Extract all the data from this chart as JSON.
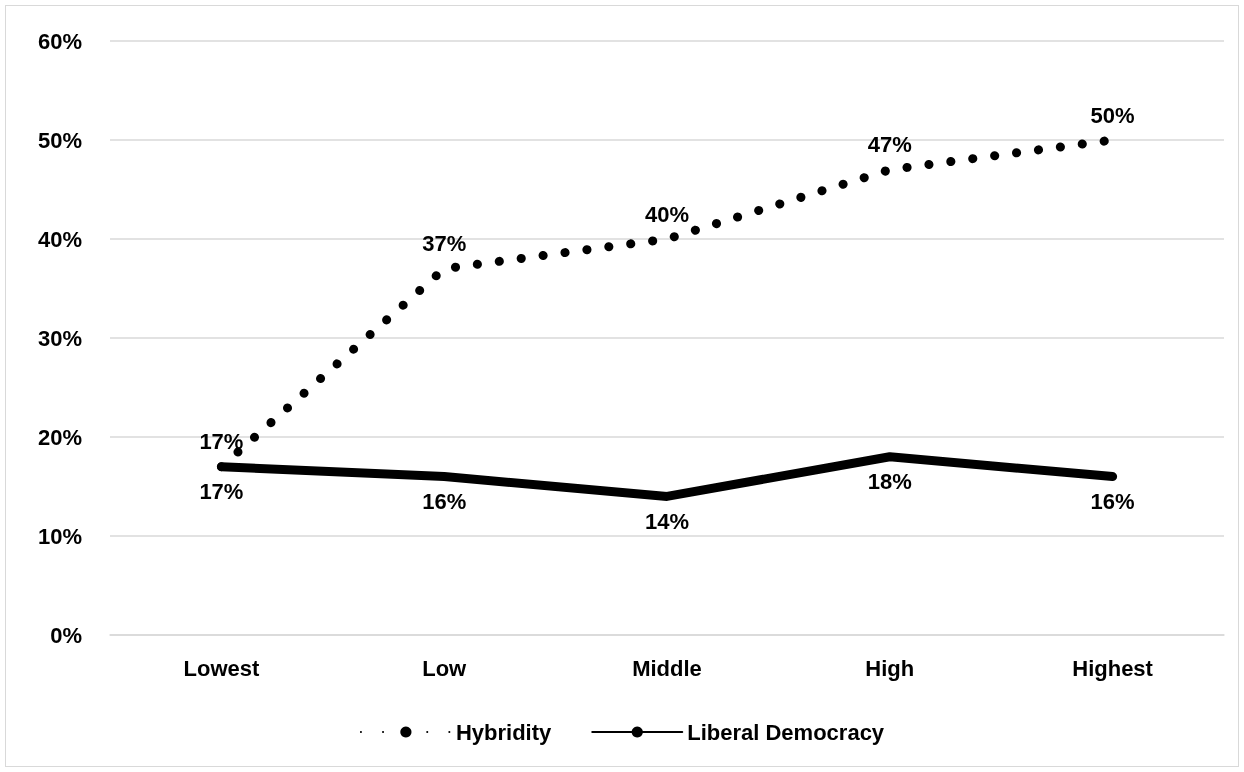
{
  "chart_data": {
    "type": "line",
    "categories": [
      "Lowest",
      "Low",
      "Middle",
      "High",
      "Highest"
    ],
    "series": [
      {
        "name": "Hybridity",
        "color": "#000000",
        "line_style": "dotted",
        "values": [
          17,
          37,
          40,
          47,
          50
        ],
        "value_labels": [
          "17%",
          "37%",
          "40%",
          "47%",
          "50%"
        ]
      },
      {
        "name": "Liberal Democracy",
        "color": "#000000",
        "line_style": "solid",
        "values": [
          17,
          16,
          14,
          18,
          16
        ],
        "value_labels": [
          "17%",
          "16%",
          "14%",
          "18%",
          "16%"
        ]
      }
    ],
    "ylim": [
      0,
      60
    ],
    "yticks": [
      {
        "value": 0,
        "label": "0%"
      },
      {
        "value": 10,
        "label": "10%"
      },
      {
        "value": 20,
        "label": "20%"
      },
      {
        "value": 30,
        "label": "30%"
      },
      {
        "value": 40,
        "label": "40%"
      },
      {
        "value": 50,
        "label": "50%"
      },
      {
        "value": 60,
        "label": "60%"
      }
    ],
    "grid": "y",
    "legend": "bottom",
    "marker": "none"
  }
}
